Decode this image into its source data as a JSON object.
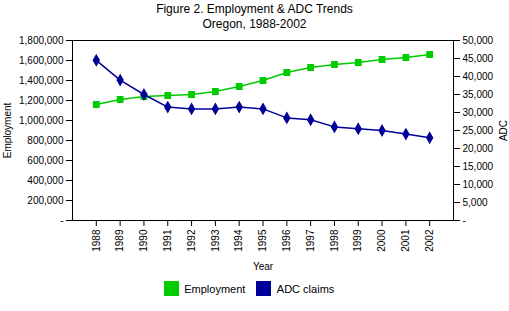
{
  "chart_data": {
    "type": "line",
    "title": "Figure 2. Employment & ADC Trends\nOregon, 1988-2002",
    "x": [
      1988,
      1989,
      1990,
      1991,
      1992,
      1993,
      1994,
      1995,
      1996,
      1997,
      1998,
      1999,
      2000,
      2001,
      2002
    ],
    "series": [
      {
        "name": "Employment",
        "color": "#00CC00",
        "marker": "square",
        "values": [
          1160000,
          1210000,
          1240000,
          1250000,
          1260000,
          1290000,
          1340000,
          1400000,
          1480000,
          1530000,
          1560000,
          1580000,
          1610000,
          1630000,
          1660000
        ]
      },
      {
        "name": "ADC claims",
        "color": "#000099",
        "marker": "diamond",
        "axis": "y2",
        "values": [
          44500,
          39000,
          35000,
          31500,
          31000,
          31000,
          31500,
          31000,
          28500,
          28000,
          26000,
          25500,
          25000,
          24000,
          23000
        ]
      }
    ],
    "xlabel": "Year",
    "ylabel": "Employment",
    "y2label": "ADC",
    "xlim": [
      1987,
      2003
    ],
    "xticks": [
      1988,
      1989,
      1990,
      1991,
      1992,
      1993,
      1994,
      1995,
      1996,
      1997,
      1998,
      1999,
      2000,
      2001,
      2002
    ],
    "ylim": [
      0,
      1800000
    ],
    "yticks": [
      {
        "value": 0,
        "label": "-"
      },
      {
        "value": 200000,
        "label": "200,000"
      },
      {
        "value": 400000,
        "label": "400,000"
      },
      {
        "value": 600000,
        "label": "600,000"
      },
      {
        "value": 800000,
        "label": "800,000"
      },
      {
        "value": 1000000,
        "label": "1,000,000"
      },
      {
        "value": 1200000,
        "label": "1,200,000"
      },
      {
        "value": 1400000,
        "label": "1,400,000"
      },
      {
        "value": 1600000,
        "label": "1,600,000"
      },
      {
        "value": 1800000,
        "label": "1,800,000"
      }
    ],
    "y2lim": [
      0,
      50000
    ],
    "y2ticks": [
      {
        "value": 0,
        "label": "-"
      },
      {
        "value": 5000,
        "label": "5,000"
      },
      {
        "value": 10000,
        "label": "10,000"
      },
      {
        "value": 15000,
        "label": "15,000"
      },
      {
        "value": 20000,
        "label": "20,000"
      },
      {
        "value": 25000,
        "label": "25,000"
      },
      {
        "value": 30000,
        "label": "30,000"
      },
      {
        "value": 35000,
        "label": "35,000"
      },
      {
        "value": 40000,
        "label": "40,000"
      },
      {
        "value": 45000,
        "label": "45,000"
      },
      {
        "value": 50000,
        "label": "50,000"
      }
    ],
    "grid": false,
    "legend": "bottom"
  }
}
